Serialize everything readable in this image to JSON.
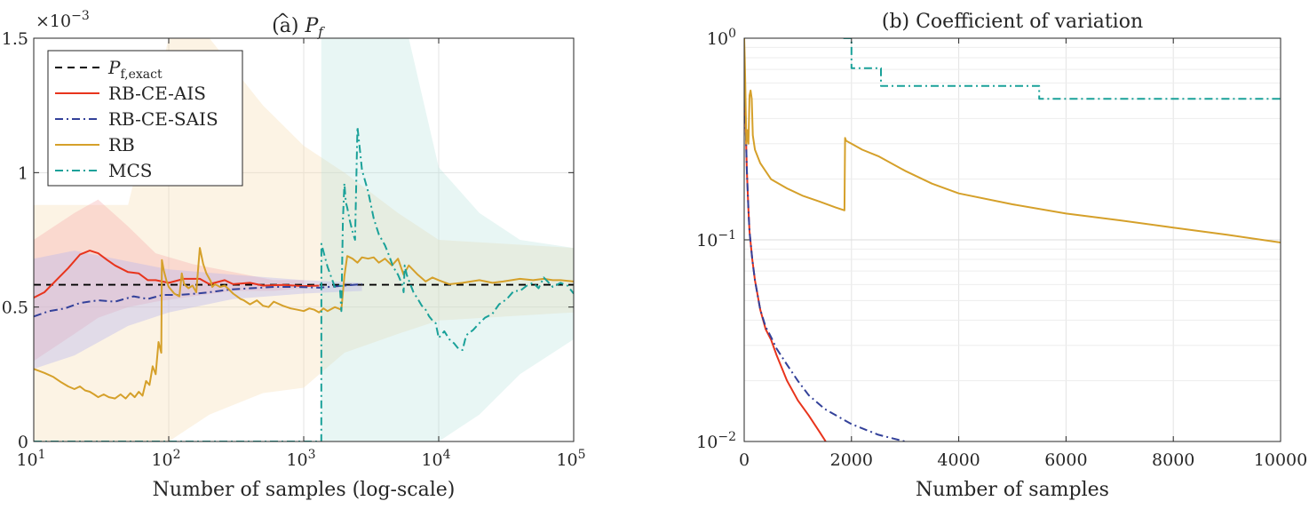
{
  "chart_data": [
    {
      "type": "line",
      "panel": "a",
      "title_prefix": "(a) ",
      "title_symbol": "P",
      "title_sub": "f",
      "xlabel": "Number of samples (log-scale)",
      "ylabel": "",
      "x_scale": "log",
      "xlim": [
        10,
        100000
      ],
      "ylim": [
        0,
        0.0015
      ],
      "y_exponent_label": "×10",
      "y_exponent_value": "−3",
      "xticks": [
        {
          "value": 10,
          "base": "10",
          "exp": "1"
        },
        {
          "value": 100,
          "base": "10",
          "exp": "2"
        },
        {
          "value": 1000,
          "base": "10",
          "exp": "3"
        },
        {
          "value": 10000,
          "base": "10",
          "exp": "4"
        },
        {
          "value": 100000,
          "base": "10",
          "exp": "5"
        }
      ],
      "yticks": [
        {
          "value": 0,
          "label": "0"
        },
        {
          "value": 0.0005,
          "label": "0.5"
        },
        {
          "value": 0.001,
          "label": "1"
        },
        {
          "value": 0.0015,
          "label": "1.5"
        }
      ],
      "grid": true,
      "legend_position": "top-left",
      "legend": [
        {
          "label_main": "P",
          "label_sub": "f,exact",
          "color": "#000000",
          "dash": "8,6"
        },
        {
          "label_main": "RB-CE-AIS",
          "label_sub": "",
          "color": "#e8341c",
          "dash": ""
        },
        {
          "label_main": "RB-CE-SAIS",
          "label_sub": "",
          "color": "#33419a",
          "dash": "9,4,2,4"
        },
        {
          "label_main": "RB",
          "label_sub": "",
          "color": "#d5a02a",
          "dash": ""
        },
        {
          "label_main": "MCS",
          "label_sub": "",
          "color": "#1aa199",
          "dash": "9,4,2,4"
        }
      ],
      "reference_value": 0.000583,
      "bands": [
        {
          "series": "RB",
          "color": "#f6dcb2",
          "opacity": 0.35,
          "x": [
            10,
            50,
            80,
            100,
            200,
            500,
            1000,
            2000,
            5000,
            10000,
            100000
          ],
          "upper": [
            0.00088,
            0.00088,
            0.0013,
            0.0015,
            0.0015,
            0.00125,
            0.0011,
            0.001,
            0.00085,
            0.00075,
            0.00072
          ],
          "lower": [
            0,
            0,
            0,
            0,
            0.0001,
            0.00018,
            0.0002,
            0.00033,
            0.0004,
            0.00045,
            0.00048
          ]
        },
        {
          "series": "MCS",
          "color": "#b2e2dc",
          "opacity": 0.3,
          "x": [
            1350,
            3000,
            6000,
            10000,
            20000,
            40000,
            100000
          ],
          "upper": [
            0.0015,
            0.0015,
            0.0015,
            0.00102,
            0.00085,
            0.00075,
            0.00072
          ],
          "lower": [
            0,
            0,
            0,
            0,
            0.0001,
            0.00025,
            0.00038
          ]
        },
        {
          "series": "RB-CE-AIS",
          "color": "#f7a8a8",
          "opacity": 0.35,
          "x": [
            10,
            20,
            30,
            50,
            80,
            150,
            300,
            600,
            1000
          ],
          "upper": [
            0.00075,
            0.00085,
            0.0009,
            0.0008,
            0.0007,
            0.00066,
            0.00063,
            0.0006,
            0.0006
          ],
          "lower": [
            0.0003,
            0.0004,
            0.00046,
            0.0005,
            0.00052,
            0.00054,
            0.00056,
            0.00056,
            0.00057
          ]
        },
        {
          "series": "RB-CE-SAIS",
          "color": "#b8b6ee",
          "opacity": 0.4,
          "x": [
            10,
            20,
            50,
            100,
            300,
            1000,
            2700
          ],
          "upper": [
            0.00068,
            0.00071,
            0.00067,
            0.00064,
            0.00062,
            0.0006,
            0.00059
          ],
          "lower": [
            0.00027,
            0.00032,
            0.00043,
            0.00048,
            0.00053,
            0.00055,
            0.00056
          ]
        }
      ],
      "series": [
        {
          "name": "RB-CE-AIS",
          "color": "#e8341c",
          "dash": "",
          "x": [
            10,
            12,
            15,
            18,
            22,
            26,
            30,
            35,
            40,
            50,
            60,
            70,
            80,
            100,
            130,
            170,
            200,
            260,
            300,
            400,
            500,
            700,
            1000,
            1300
          ],
          "y": [
            0.000535,
            0.000555,
            0.000605,
            0.000645,
            0.000695,
            0.00071,
            0.0007,
            0.000675,
            0.000655,
            0.00063,
            0.000625,
            0.0006,
            0.0006,
            0.00059,
            0.000605,
            0.000605,
            0.000585,
            0.0006,
            0.000585,
            0.00059,
            0.00058,
            0.000582,
            0.000578,
            0.00058
          ]
        },
        {
          "name": "RB-CE-SAIS",
          "color": "#33419a",
          "dash": "9,4,2,4",
          "x": [
            10,
            13,
            17,
            22,
            30,
            40,
            55,
            70,
            90,
            120,
            160,
            200,
            280,
            400,
            600,
            900,
            1300,
            1800,
            2300,
            2700
          ],
          "y": [
            0.000465,
            0.000485,
            0.000495,
            0.000515,
            0.000525,
            0.00052,
            0.00054,
            0.00053,
            0.000545,
            0.000545,
            0.00055,
            0.000555,
            0.000565,
            0.00057,
            0.000575,
            0.000575,
            0.000572,
            0.000578,
            0.000582,
            0.000585
          ]
        },
        {
          "name": "RB",
          "color": "#d5a02a",
          "dash": "",
          "x": [
            10,
            12,
            14,
            16,
            18,
            20,
            22,
            24,
            26,
            28,
            30,
            33,
            36,
            40,
            44,
            48,
            52,
            56,
            60,
            64,
            68,
            72,
            76,
            80,
            84,
            88,
            89,
            92,
            96,
            100,
            110,
            120,
            125,
            130,
            140,
            150,
            160,
            170,
            180,
            190,
            200,
            205,
            210,
            220,
            240,
            260,
            280,
            300,
            320,
            340,
            360,
            400,
            450,
            500,
            550,
            600,
            700,
            800,
            900,
            1000,
            1100,
            1200,
            1300,
            1400,
            1500,
            1700,
            1900,
            2000,
            2100,
            2300,
            2500,
            2700,
            3000,
            3300,
            3600,
            4000,
            4500,
            5000,
            5500,
            6000,
            7000,
            8000,
            9000,
            10000,
            12000,
            15000,
            20000,
            25000,
            30000,
            40000,
            50000,
            60000,
            70000,
            80000,
            100000
          ],
          "y": [
            0.00027,
            0.000255,
            0.00024,
            0.00022,
            0.000205,
            0.000195,
            0.000205,
            0.00019,
            0.000185,
            0.000175,
            0.000165,
            0.000175,
            0.000165,
            0.00016,
            0.000175,
            0.00016,
            0.00018,
            0.000165,
            0.000185,
            0.00017,
            0.000225,
            0.00021,
            0.00028,
            0.00025,
            0.00037,
            0.00033,
            0.000675,
            0.000635,
            0.0006,
            0.000575,
            0.00055,
            0.00054,
            0.000625,
            0.000585,
            0.00057,
            0.00058,
            0.000555,
            0.00072,
            0.00066,
            0.000625,
            0.000605,
            0.000595,
            0.000575,
            0.000585,
            0.000575,
            0.00058,
            0.000565,
            0.00055,
            0.00054,
            0.00053,
            0.000525,
            0.00051,
            0.000525,
            0.000505,
            0.0005,
            0.00052,
            0.000505,
            0.000495,
            0.00049,
            0.000485,
            0.000495,
            0.00049,
            0.00048,
            0.000495,
            0.000485,
            0.0005,
            0.00049,
            0.000615,
            0.00069,
            0.00068,
            0.000665,
            0.000685,
            0.00068,
            0.000685,
            0.000665,
            0.00068,
            0.000655,
            0.00068,
            0.00062,
            0.000655,
            0.00062,
            0.000595,
            0.00061,
            0.0006,
            0.000585,
            0.00059,
            0.0006,
            0.00059,
            0.000595,
            0.000605,
            0.0006,
            0.000605,
            0.0006,
            0.0006,
            0.000595
          ]
        },
        {
          "name": "MCS",
          "color": "#1aa199",
          "dash": "9,4,2,4",
          "x": [
            10,
            1350,
            1351,
            1500,
            1700,
            1850,
            1900,
            1950,
            2000,
            2050,
            2100,
            2200,
            2300,
            2400,
            2500,
            2600,
            2700,
            3000,
            3300,
            3600,
            4000,
            4300,
            4600,
            5000,
            5400,
            5500,
            5600,
            5800,
            6000,
            6500,
            7000,
            7500,
            8000,
            8500,
            9000,
            9500,
            10000,
            11000,
            12000,
            13000,
            14000,
            15000,
            16000,
            18000,
            20000,
            22000,
            25000,
            28000,
            32000,
            36000,
            40000,
            45000,
            50000,
            55000,
            60000,
            70000,
            80000,
            90000,
            100000
          ],
          "y": [
            0,
            0,
            0.000735,
            0.00065,
            0.000575,
            0.00058,
            0.000485,
            0.00082,
            0.00096,
            0.00089,
            0.00087,
            0.00082,
            0.00078,
            0.00075,
            0.00117,
            0.00109,
            0.00101,
            0.00093,
            0.00083,
            0.00077,
            0.00073,
            0.00069,
            0.00065,
            0.00062,
            0.00058,
            0.000555,
            0.000655,
            0.00062,
            0.0006,
            0.000555,
            0.00053,
            0.000505,
            0.00049,
            0.000465,
            0.00045,
            0.00044,
            0.000385,
            0.00041,
            0.00038,
            0.000365,
            0.000345,
            0.00034,
            0.000395,
            0.000415,
            0.00044,
            0.00046,
            0.000475,
            0.00051,
            0.00053,
            0.00056,
            0.00056,
            0.00058,
            0.00059,
            0.00057,
            0.00061,
            0.000575,
            0.00059,
            0.00058,
            0.00055
          ]
        }
      ]
    },
    {
      "type": "line",
      "panel": "b",
      "title": "(b) Coefficient of variation",
      "xlabel": "Number of samples",
      "ylabel": "",
      "y_scale": "log",
      "xlim": [
        0,
        10000
      ],
      "ylim": [
        0.01,
        1
      ],
      "xticks": [
        {
          "value": 0,
          "label": "0"
        },
        {
          "value": 2000,
          "label": "2000"
        },
        {
          "value": 4000,
          "label": "4000"
        },
        {
          "value": 6000,
          "label": "6000"
        },
        {
          "value": 8000,
          "label": "8000"
        },
        {
          "value": 10000,
          "label": "10000"
        }
      ],
      "yticks": [
        {
          "value": 0.01,
          "base": "10",
          "exp": "−2"
        },
        {
          "value": 0.1,
          "base": "10",
          "exp": "−1"
        },
        {
          "value": 1,
          "base": "10",
          "exp": "0"
        }
      ],
      "grid": true,
      "series": [
        {
          "name": "RB-CE-AIS",
          "color": "#e8341c",
          "dash": "",
          "x": [
            20,
            30,
            50,
            80,
            100,
            150,
            200,
            300,
            400,
            500,
            600,
            800,
            1000,
            1200,
            1400,
            1520
          ],
          "y": [
            0.5,
            0.35,
            0.22,
            0.14,
            0.11,
            0.08,
            0.063,
            0.045,
            0.036,
            0.032,
            0.027,
            0.02,
            0.016,
            0.0135,
            0.0112,
            0.01
          ]
        },
        {
          "name": "RB-CE-SAIS",
          "color": "#33419a",
          "dash": "9,4,2,4",
          "x": [
            20,
            30,
            50,
            80,
            100,
            150,
            200,
            300,
            400,
            500,
            600,
            800,
            1000,
            1200,
            1500,
            2000,
            2500,
            3000
          ],
          "y": [
            0.5,
            0.35,
            0.22,
            0.14,
            0.11,
            0.08,
            0.063,
            0.045,
            0.037,
            0.033,
            0.029,
            0.024,
            0.02,
            0.017,
            0.0145,
            0.0122,
            0.0108,
            0.01
          ]
        },
        {
          "name": "RB",
          "color": "#d5a02a",
          "dash": "",
          "x": [
            0,
            10,
            20,
            40,
            60,
            80,
            100,
            120,
            140,
            160,
            200,
            300,
            500,
            800,
            1100,
            1400,
            1700,
            1870,
            1880,
            1900,
            2000,
            2200,
            2500,
            3000,
            3500,
            4000,
            5000,
            6000,
            7000,
            8000,
            9000,
            10000
          ],
          "y": [
            1,
            0.8,
            0.6,
            0.3,
            0.35,
            0.3,
            0.52,
            0.55,
            0.5,
            0.33,
            0.28,
            0.24,
            0.2,
            0.18,
            0.165,
            0.155,
            0.145,
            0.14,
            0.32,
            0.31,
            0.3,
            0.28,
            0.26,
            0.22,
            0.19,
            0.17,
            0.15,
            0.135,
            0.125,
            0.115,
            0.106,
            0.097
          ]
        },
        {
          "name": "MCS",
          "color": "#1aa199",
          "dash": "9,4,2,4",
          "x": [
            1850,
            2000,
            2000,
            2100,
            2100,
            2550,
            2550,
            3000,
            5430,
            5500,
            5500,
            10000
          ],
          "y": [
            1,
            1,
            0.71,
            0.71,
            0.71,
            0.71,
            0.58,
            0.58,
            0.58,
            0.58,
            0.5,
            0.5
          ]
        }
      ]
    }
  ]
}
